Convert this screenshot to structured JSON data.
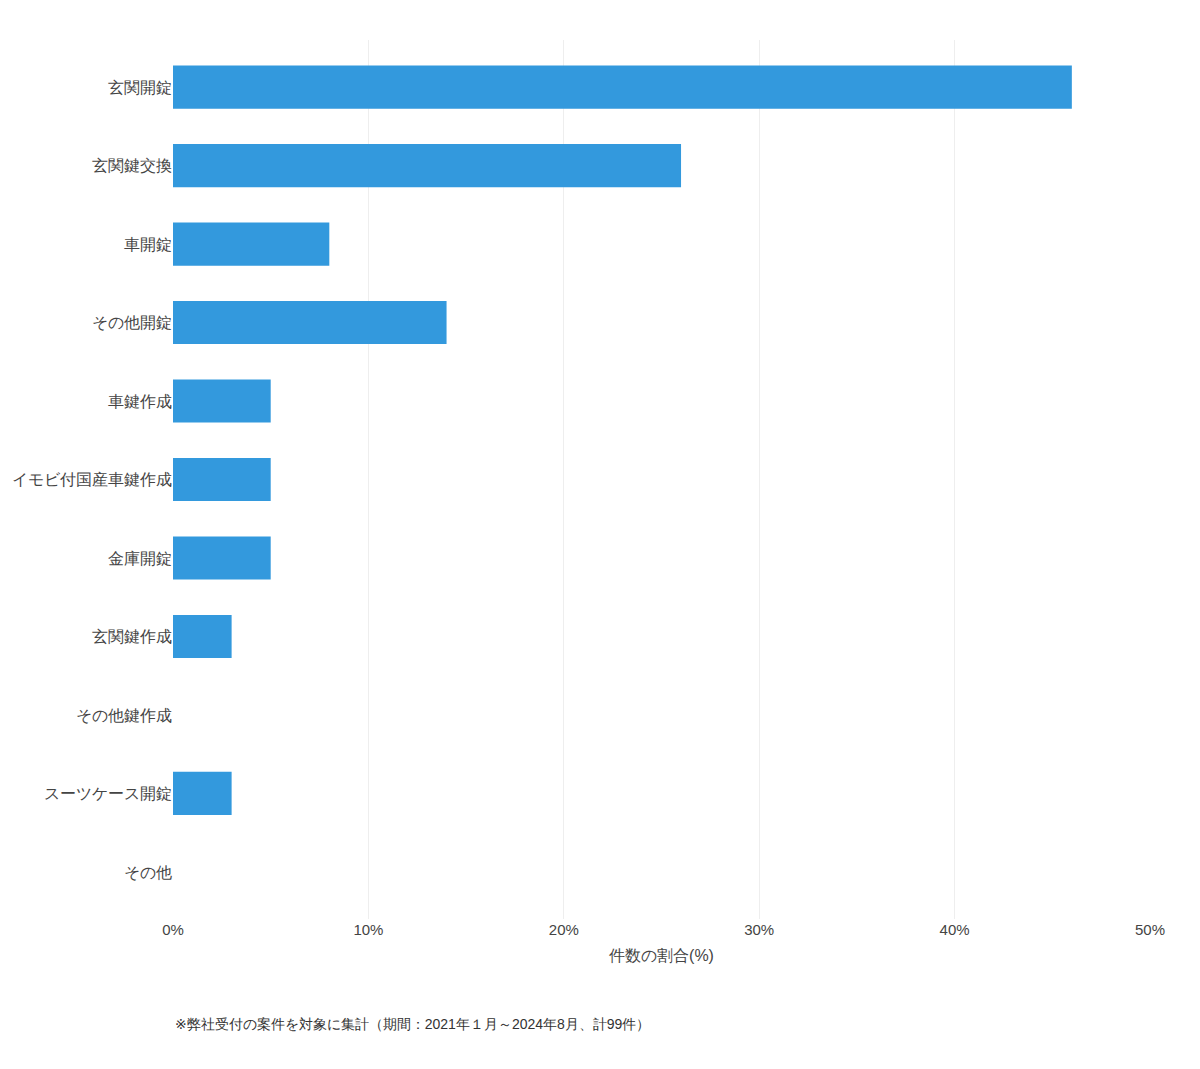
{
  "chart_data": {
    "type": "bar",
    "orientation": "horizontal",
    "categories": [
      "その他",
      "スーツケース開錠",
      "その他鍵作成",
      "玄関鍵作成",
      "金庫開錠",
      "イモビ付国産車鍵作成",
      "車鍵作成",
      "その他開錠",
      "車開錠",
      "玄関鍵交換",
      "玄関開錠"
    ],
    "values": [
      0.0,
      3.0,
      0.0,
      3.0,
      5.0,
      5.0,
      5.0,
      14.0,
      8.0,
      26.0,
      46.0
    ],
    "color": "#3399dd",
    "xlabel": "件数の割合(%)",
    "xlim": [
      0,
      50
    ],
    "xticks": [
      {
        "value": 0,
        "label": "0%"
      },
      {
        "value": 10,
        "label": "10%"
      },
      {
        "value": 20,
        "label": "20%"
      },
      {
        "value": 30,
        "label": "30%"
      },
      {
        "value": 40,
        "label": "40%"
      },
      {
        "value": 50,
        "label": "50%"
      }
    ],
    "grid": true,
    "annotations": [
      "※弊社受付の案件を対象に集計（期間：2021年１月～2024年8月、計99件）"
    ]
  }
}
